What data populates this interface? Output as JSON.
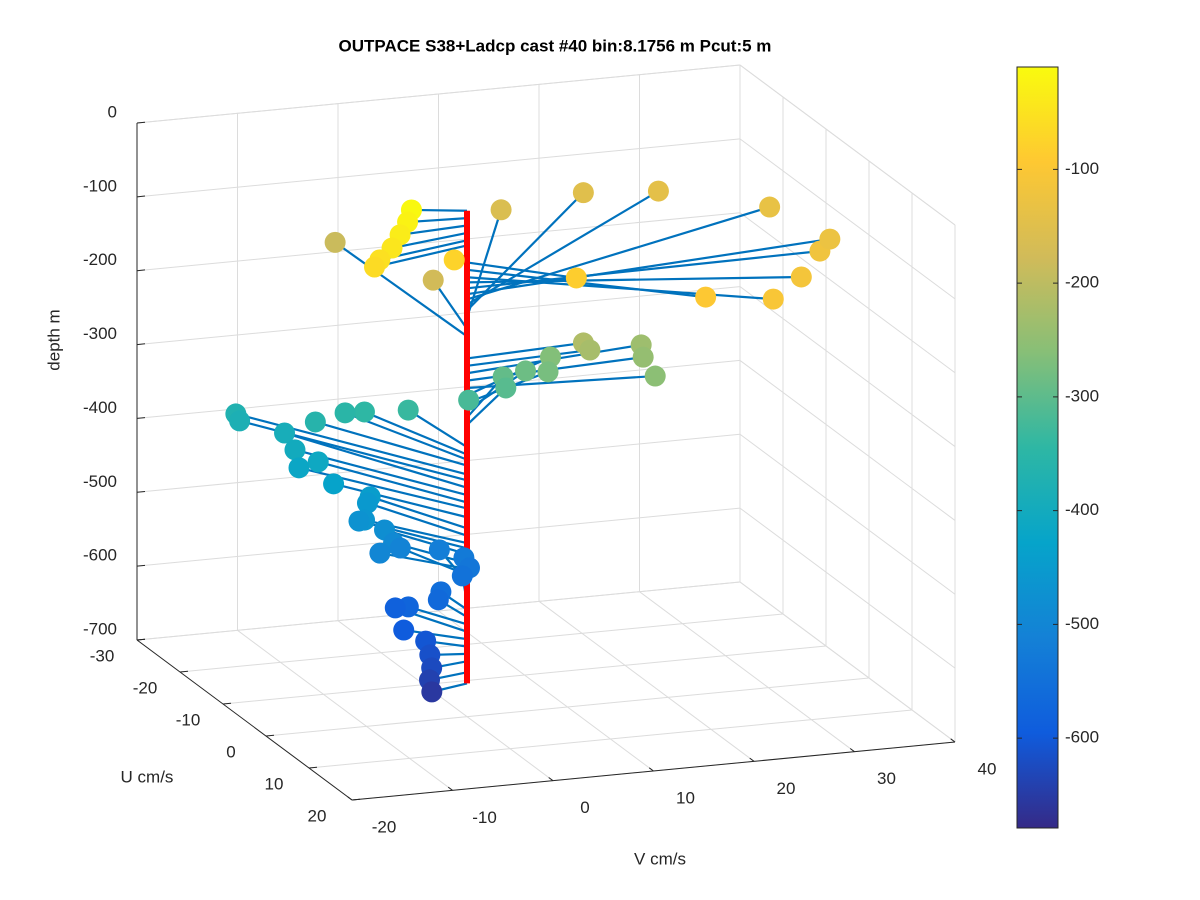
{
  "chart_data": {
    "type": "quiver3d",
    "title": "OUTPACE S38+Ladcp cast #40 bin:8.1756 m  Pcut:5 m",
    "ulabel": "U cm/s",
    "vlabel": "V cm/s",
    "zlabel": "depth m",
    "ulim": [
      -30,
      20
    ],
    "uticks": [
      -30,
      -20,
      -10,
      0,
      10,
      20
    ],
    "vlim": [
      -20,
      40
    ],
    "vticks": [
      -20,
      -10,
      0,
      10,
      20,
      30,
      40
    ],
    "zlim": [
      -700,
      0
    ],
    "zticks": [
      0,
      -100,
      -200,
      -300,
      -400,
      -500,
      -600,
      -700
    ],
    "grid": true,
    "stick_color": "#0072bd",
    "profile_color": "#ff0000",
    "colormap": [
      "#352a87",
      "#0f5cdd",
      "#1481d6",
      "#06a4ca",
      "#2eb7a4",
      "#87bf77",
      "#d1bb59",
      "#fec832",
      "#f9fb0e"
    ],
    "clim": [
      -679,
      -10
    ],
    "cticks": [
      -100,
      -200,
      -300,
      -400,
      -500,
      -600
    ],
    "u": [
      -1.7,
      -0.5,
      0.8,
      2.2,
      3.1,
      3.5,
      1.0,
      7.2,
      13.9,
      14.2,
      7.4,
      -0.9,
      -5.6,
      -17.5,
      -26.3,
      -29.5,
      -29,
      -14.4,
      -29.5,
      -1.2,
      -1.1,
      -3.2,
      -1.8,
      1.7,
      -8.4,
      -6.4,
      -9.3,
      -10.3,
      -9.2,
      -9.9,
      -11.8,
      -14.5,
      -16.2,
      -16.1,
      -22.9,
      -22.5,
      -20.0,
      -17.1,
      -15.2,
      -15.7,
      -12.8,
      -11.3,
      -11.7,
      -9.1,
      -10.4,
      -8.9,
      -7.5,
      -6.7,
      -9.2,
      -9.7,
      -8.9,
      -7.6,
      -7.4,
      -5.6,
      -5.5,
      -6.4,
      -8.5,
      -4.2,
      -2.6,
      -0.7,
      0.9,
      1.1,
      1.4
    ],
    "v": [
      -4.8,
      -5.7,
      -7.0,
      -8.4,
      -10.0,
      -10.7,
      -1.7,
      7.8,
      17.8,
      24.4,
      30.1,
      35.5,
      38.5,
      37.6,
      30.3,
      24.2,
      15.8,
      2.8,
      -0.5,
      12.1,
      12.7,
      18.7,
      18.3,
      18.0,
      11.9,
      10.8,
      9.8,
      8.0,
      7.8,
      4.4,
      -0.8,
      -4.0,
      -5.2,
      -8.2,
      -13.2,
      -13.0,
      -9.6,
      -9.8,
      -8.3,
      -10.0,
      -7.8,
      -4.8,
      -4.9,
      -6.3,
      -6.3,
      -4.4,
      -4.1,
      -5.8,
      -2.7,
      1.4,
      3.5,
      3.5,
      2.7,
      -0.2,
      -0.5,
      -3.1,
      -3.5,
      -4.5,
      -3.0,
      -3.4,
      -3.9,
      -4.2,
      -4.1
    ],
    "depth": [
      -15,
      -25,
      -35,
      -45,
      -55,
      -62,
      -75,
      -85,
      -95,
      -105,
      -112,
      -120,
      -128,
      -135,
      -142,
      -150,
      -160,
      -175,
      -185,
      -215,
      -225,
      -235,
      -245,
      -255,
      -265,
      -275,
      -285,
      -295,
      -305,
      -320,
      -335,
      -345,
      -352,
      -360,
      -372,
      -380,
      -390,
      -400,
      -410,
      -418,
      -430,
      -445,
      -455,
      -465,
      -472,
      -480,
      -492,
      -500,
      -508,
      -518,
      -528,
      -536,
      -545,
      -555,
      -565,
      -575,
      -585,
      -595,
      -605,
      -615,
      -625,
      -640,
      -655
    ]
  }
}
